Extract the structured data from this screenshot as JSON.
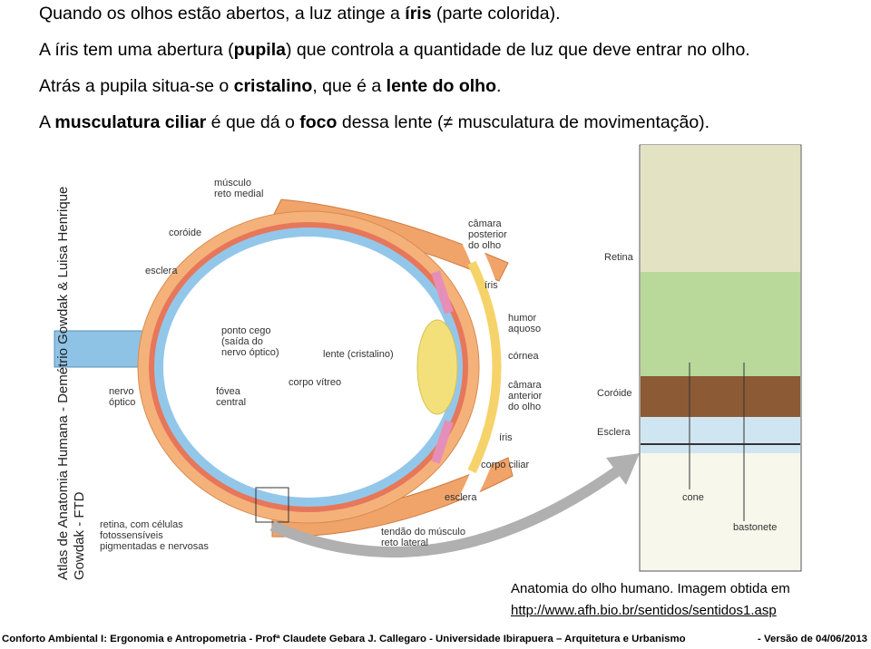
{
  "intro": [
    [
      "Quando os olhos estão abertos, a luz atinge a ",
      "íris",
      " (parte colorida)."
    ],
    [
      "A íris tem uma abertura (",
      "pupila",
      ") que controla a quantidade de luz que deve entrar no olho."
    ],
    [
      "Atrás a pupila situa-se o ",
      "cristalino",
      ", que é a ",
      "lente do olho",
      "."
    ],
    [
      "A ",
      "musculatura ciliar",
      "  é que dá o ",
      "foco",
      " dessa lente (≠ musculatura de movimentação)."
    ]
  ],
  "figure": {
    "credit": [
      "Atlas de Anatomia Humana - Demétrio Gowdak & Luisa Henrique",
      "Gowdak - FTD"
    ],
    "labels": [
      [
        "músculo",
        "reto medial"
      ],
      [
        "coróide"
      ],
      [
        "esclera"
      ],
      [
        "ponto cego",
        "(saída do",
        "nervo óptico)"
      ],
      [
        "lente (cristalino)"
      ],
      [
        "nervo",
        "óptico"
      ],
      [
        "fóvea",
        "central"
      ],
      [
        "corpo vítreo"
      ],
      [
        "câmara",
        "posterior",
        "do olho"
      ],
      [
        "íris"
      ],
      [
        "humor",
        "aquoso"
      ],
      [
        "córnea"
      ],
      [
        "câmara",
        "anterior",
        "do olho"
      ],
      [
        "íris"
      ],
      [
        "corpo ciliar"
      ],
      [
        "esclera"
      ],
      [
        "retina, com células",
        "fotossensíveis",
        "pigmentadas e nervosas"
      ],
      [
        "tendão do músculo",
        "reto lateral"
      ],
      [
        "Retina"
      ],
      [
        "Coróide"
      ],
      [
        "Esclera"
      ],
      [
        "cone"
      ],
      [
        "bastonete"
      ]
    ]
  },
  "caption": {
    "text": "Anatomia do olho humano. Imagem obtida em",
    "link": "http://www.afh.bio.br/sentidos/sentidos1.asp"
  },
  "footer": {
    "left": "Conforto Ambiental I: Ergonomia e Antropometria - Profª Claudete Gebara J. Callegaro - Universidade Ibirapuera – Arquitetura e Urbanismo",
    "right": "- Versão de 04/06/2013"
  }
}
